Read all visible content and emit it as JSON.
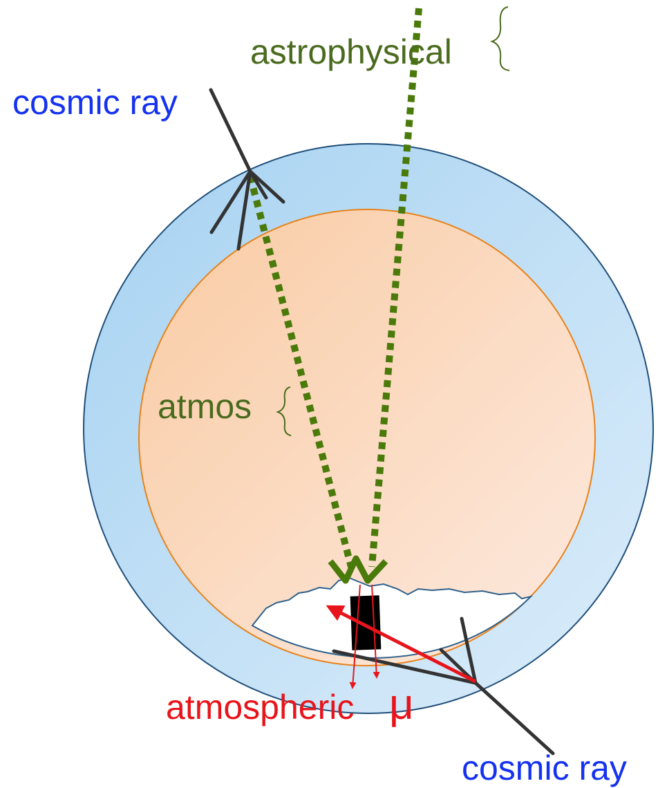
{
  "labels": {
    "astrophysical": "astrophysical",
    "cosmic_ray_top": "cosmic ray",
    "atmos": "atmos",
    "atmospheric": "atmospheric",
    "mu": "μ",
    "cosmic_ray_bottom": "cosmic ray"
  }
}
